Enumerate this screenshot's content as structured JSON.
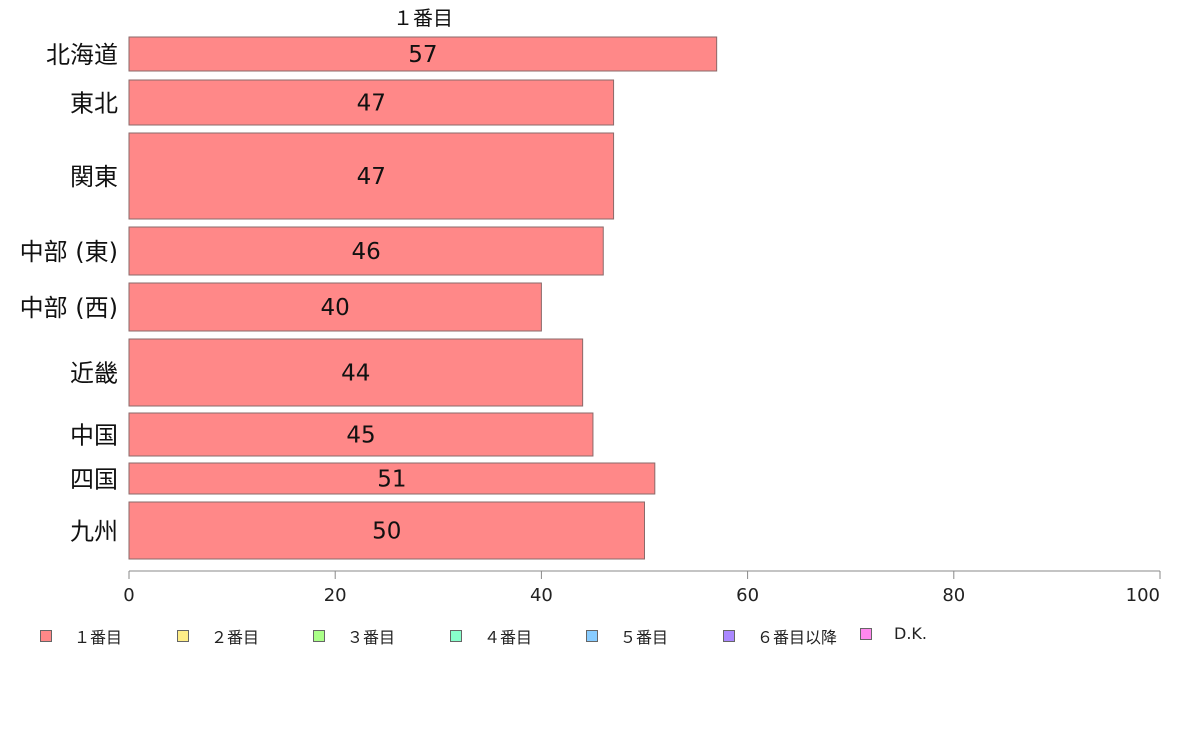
{
  "chart_data": {
    "type": "bar",
    "orientation": "horizontal",
    "title": "１番目",
    "categories": [
      "北海道",
      "東北",
      "関東",
      "中部 (東)",
      "中部 (西)",
      "近畿",
      "中国",
      "四国",
      "九州"
    ],
    "series": [
      {
        "name": "１番目",
        "color": "#ff8888",
        "values": [
          57,
          47,
          47,
          46,
          40,
          44,
          45,
          51,
          50
        ]
      }
    ],
    "xlim": [
      0,
      100
    ],
    "xticks": [
      0,
      20,
      40,
      60,
      80,
      100
    ],
    "grid": false,
    "legend_position": "bottom"
  },
  "legend": [
    {
      "label": "１番目",
      "color": "#ff8888"
    },
    {
      "label": "２番目",
      "color": "#ffee88"
    },
    {
      "label": "３番目",
      "color": "#aaff88"
    },
    {
      "label": "４番目",
      "color": "#88ffcc"
    },
    {
      "label": "５番目",
      "color": "#88ccff"
    },
    {
      "label": "６番目以降",
      "color": "#aa88ff"
    },
    {
      "label": "D.K.",
      "color": "#ff88ee"
    }
  ]
}
